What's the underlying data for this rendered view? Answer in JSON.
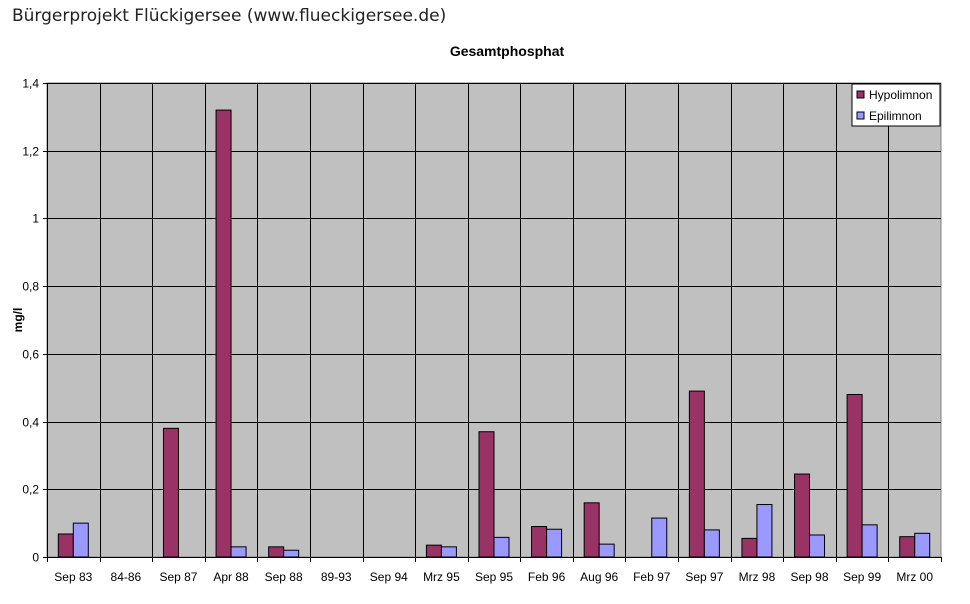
{
  "header": {
    "text": "Bürgerprojekt Flückigersee (www.flueckigersee.de)"
  },
  "chart_data": {
    "type": "bar",
    "title": "Gesamtphosphat",
    "xlabel": "",
    "ylabel": "mg/l",
    "ylim": [
      0,
      1.4
    ],
    "yticks": [
      "0",
      "0,2",
      "0,4",
      "0,6",
      "0,8",
      "1",
      "1,2",
      "1,4"
    ],
    "grid": true,
    "legend_position": "top-right",
    "categories": [
      "Sep 83",
      "84-86",
      "Sep 87",
      "Apr 88",
      "Sep 88",
      "89-93",
      "Sep 94",
      "Mrz 95",
      "Sep 95",
      "Feb 96",
      "Aug 96",
      "Feb 97",
      "Sep 97",
      "Mrz 98",
      "Sep 98",
      "Sep 99",
      "Mrz 00"
    ],
    "series": [
      {
        "name": "Hypolimnon",
        "color": "#993366",
        "values": [
          0.068,
          null,
          0.38,
          1.32,
          0.03,
          null,
          null,
          0.035,
          0.37,
          0.09,
          0.16,
          null,
          0.49,
          0.055,
          0.245,
          0.48,
          0.06
        ]
      },
      {
        "name": "Epilimnon",
        "color": "#9999FF",
        "values": [
          0.1,
          null,
          null,
          0.03,
          0.02,
          null,
          null,
          0.03,
          0.058,
          0.082,
          0.038,
          0.115,
          0.08,
          0.155,
          0.065,
          0.095,
          0.07
        ]
      }
    ],
    "colors": {
      "plot_background": "#C0C0C0",
      "gridline": "#000000"
    }
  }
}
